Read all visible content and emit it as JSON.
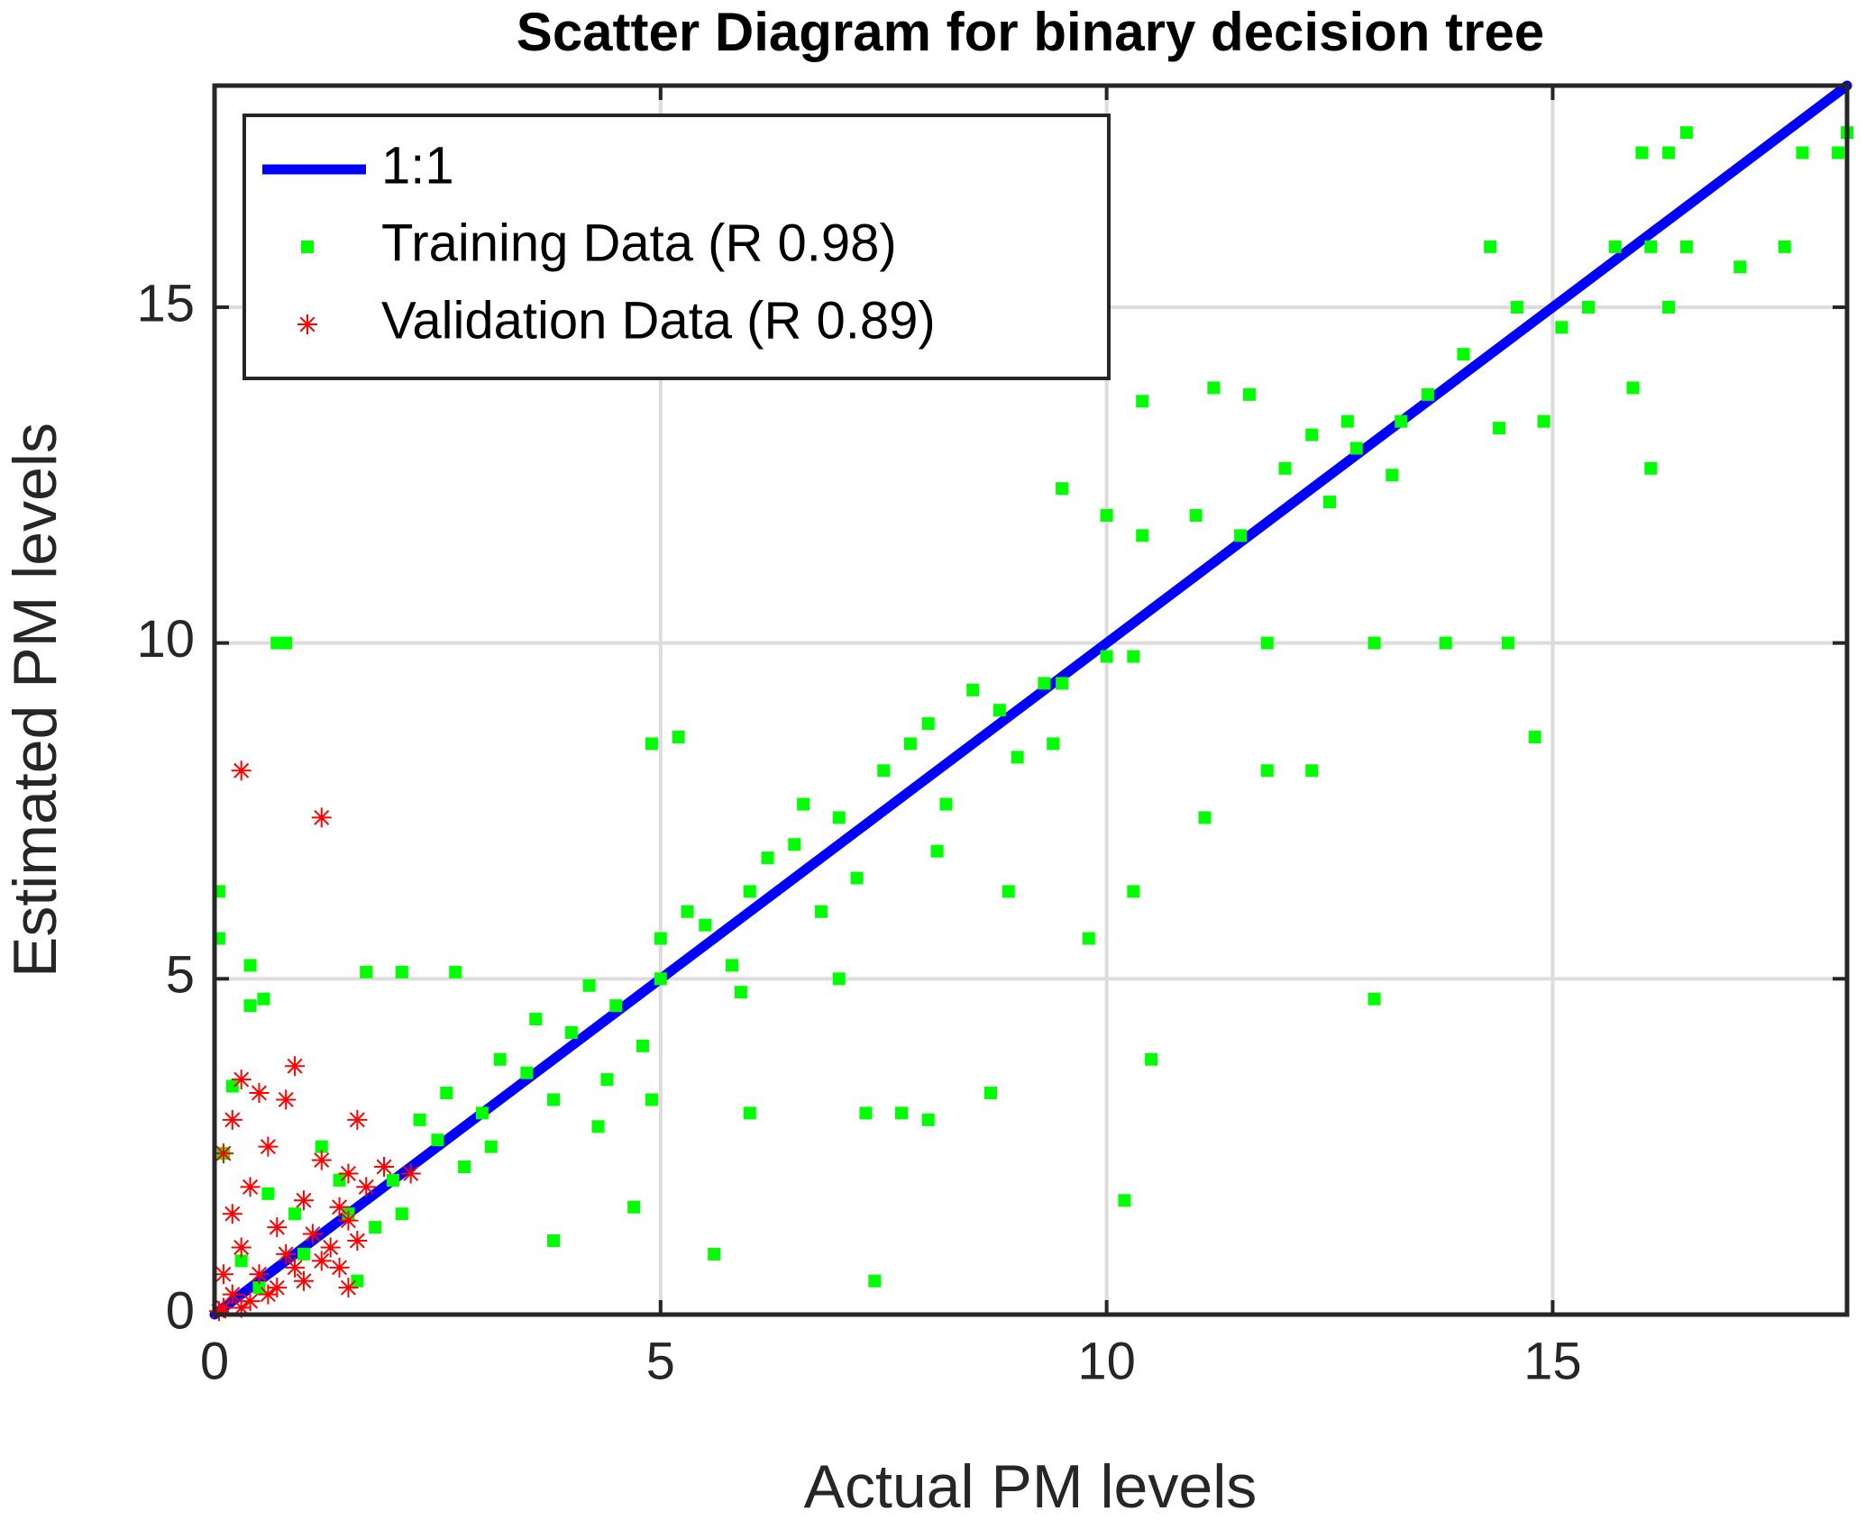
{
  "chart_data": {
    "type": "scatter",
    "title": "Scatter Diagram for binary decision tree",
    "x_label": "Actual PM levels",
    "y_label": "Estimated PM levels",
    "xlim": [
      0,
      18.3
    ],
    "ylim": [
      0,
      18.3
    ],
    "xticks": [
      0,
      5,
      10,
      15
    ],
    "yticks": [
      0,
      5,
      10,
      15
    ],
    "grid": true,
    "legend": "upper left",
    "series": [
      {
        "name": "1:1",
        "type": "line",
        "color": "#0000ff",
        "x": [
          0,
          18.3
        ],
        "values": [
          0,
          18.3
        ]
      },
      {
        "name": "Training Data (R 0.98)",
        "type": "scatter",
        "marker": "square",
        "color": "#00ff00",
        "x": [
          0.05,
          0.05,
          0.4,
          0.7,
          0.8,
          0.55,
          0.4,
          1.7,
          2.1,
          2.7,
          4.9,
          5.2,
          4.3,
          4.7,
          5.6,
          7.4,
          8.9,
          10.3,
          10.2,
          10.5,
          13.0,
          7.7,
          7.3,
          8.7,
          8.0,
          9.8,
          11.1,
          11.8,
          12.3,
          14.8,
          14.5,
          13.0,
          13.8,
          11.8,
          9.5,
          10.0,
          10.4,
          11.0,
          11.5,
          12.0,
          12.5,
          11.2,
          10.4,
          11.6,
          12.3,
          12.7,
          13.3,
          13.6,
          14.4,
          14.9,
          15.1,
          14.0,
          14.6,
          14.3,
          15.7,
          16.1,
          16.5,
          17.1,
          17.6,
          18.2,
          17.8,
          16.3,
          16.0,
          16.5,
          18.3,
          15.9,
          16.1,
          16.3,
          15.4,
          13.2,
          12.8,
          10.0,
          10.3,
          9.5,
          9.3,
          8.8,
          8.0,
          7.5,
          7.0,
          6.5,
          6.0,
          5.5,
          5.0,
          4.5,
          4.0,
          3.5,
          3.0,
          2.5,
          2.0,
          1.5,
          1.0,
          0.5,
          8.2,
          7.8,
          6.8,
          6.2,
          5.8,
          5.3,
          4.8,
          4.2,
          3.8,
          3.2,
          2.8,
          2.3,
          1.8,
          1.4,
          0.9,
          0.3,
          9.0,
          8.5,
          7.2,
          6.6,
          5.9,
          5.0,
          4.4,
          3.6,
          3.1,
          2.6,
          2.1,
          1.2,
          6.0,
          4.9,
          3.8,
          7.0,
          8.1,
          9.4,
          0.2,
          0.1,
          0.6,
          1.6
        ],
        "values": [
          6.3,
          5.6,
          5.2,
          10.0,
          10.0,
          4.7,
          4.6,
          5.1,
          5.1,
          5.1,
          8.5,
          8.6,
          2.8,
          1.6,
          0.9,
          0.5,
          6.3,
          6.3,
          1.7,
          3.8,
          4.7,
          3.0,
          3.0,
          3.3,
          2.9,
          5.6,
          7.4,
          8.1,
          8.1,
          8.6,
          10.0,
          10.0,
          10.0,
          10.0,
          12.3,
          11.9,
          11.6,
          11.9,
          11.6,
          12.6,
          12.1,
          13.8,
          13.6,
          13.7,
          13.1,
          13.3,
          13.3,
          13.7,
          13.2,
          13.3,
          14.7,
          14.3,
          15.0,
          15.9,
          15.9,
          15.9,
          15.9,
          15.6,
          15.9,
          17.3,
          17.3,
          17.3,
          17.3,
          17.6,
          17.6,
          13.8,
          12.6,
          15.0,
          15.0,
          12.5,
          12.9,
          9.8,
          9.8,
          9.4,
          9.4,
          9.0,
          8.8,
          8.1,
          7.4,
          7.0,
          6.3,
          5.8,
          5.0,
          4.6,
          4.2,
          3.6,
          3.0,
          2.6,
          2.0,
          1.5,
          0.9,
          0.4,
          7.6,
          8.5,
          6.0,
          6.8,
          5.2,
          6.0,
          4.0,
          4.9,
          3.2,
          3.8,
          2.2,
          2.9,
          1.3,
          2.0,
          1.5,
          0.8,
          8.3,
          9.3,
          6.5,
          7.6,
          4.8,
          5.6,
          3.5,
          4.4,
          2.5,
          3.3,
          1.5,
          2.5,
          3.0,
          3.2,
          1.1,
          5.0,
          6.9,
          8.5,
          3.4,
          2.4,
          1.8,
          0.5
        ]
      },
      {
        "name": "Validation Data (R 0.89)",
        "type": "scatter",
        "marker": "asterisk",
        "color": "#ff0000",
        "x": [
          0.3,
          1.2,
          0.3,
          0.9,
          0.5,
          0.2,
          1.6,
          2.2,
          1.9,
          0.8,
          0.1,
          0.6,
          1.2,
          1.5,
          0.4,
          1.0,
          1.4,
          1.7,
          0.2,
          0.7,
          1.1,
          1.5,
          0.3,
          0.8,
          1.3,
          1.6,
          0.1,
          0.5,
          0.9,
          1.2,
          0.2,
          0.4,
          0.7,
          1.0,
          1.4,
          0.1,
          0.3,
          0.6,
          1.5,
          0.05
        ],
        "values": [
          8.1,
          7.4,
          3.5,
          3.7,
          3.3,
          2.9,
          2.9,
          2.1,
          2.2,
          3.2,
          2.4,
          2.5,
          2.3,
          2.1,
          1.9,
          1.7,
          1.6,
          1.9,
          1.5,
          1.3,
          1.2,
          1.4,
          1.0,
          0.9,
          1.0,
          1.1,
          0.6,
          0.6,
          0.7,
          0.8,
          0.3,
          0.2,
          0.4,
          0.5,
          0.7,
          0.1,
          0.1,
          0.3,
          0.4,
          0.05
        ]
      }
    ]
  }
}
